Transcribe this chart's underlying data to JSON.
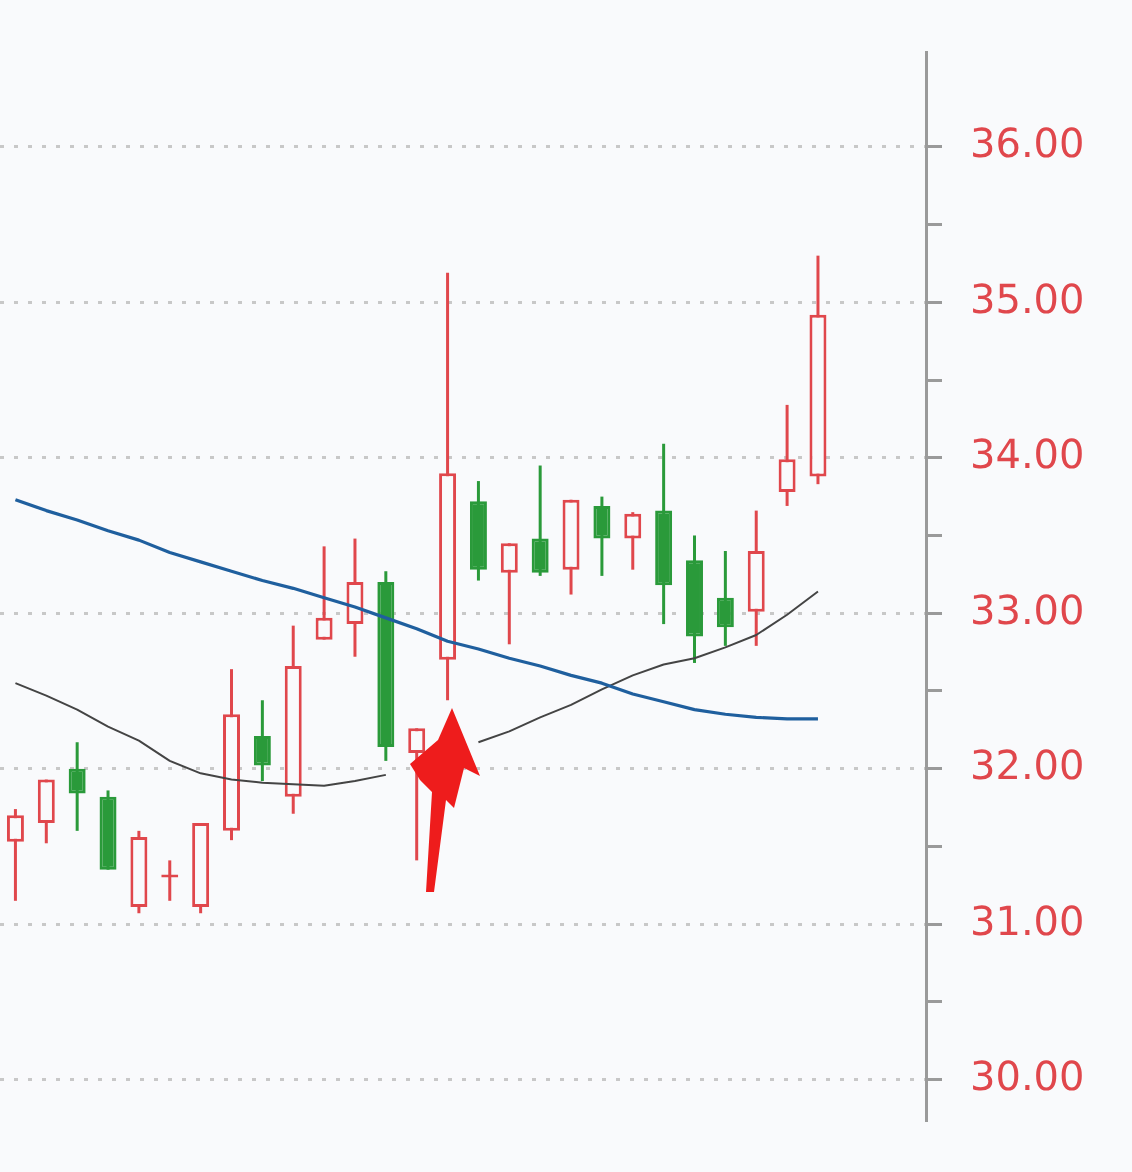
{
  "chart_data": {
    "type": "candlestick",
    "categories": [
      null,
      null,
      null,
      null,
      null,
      null,
      null,
      null,
      null,
      null,
      null,
      null,
      null,
      null,
      null,
      null,
      null,
      null,
      null,
      null,
      null,
      null,
      null,
      null,
      null,
      null,
      null,
      null,
      null,
      null
    ],
    "ohlc": [
      [
        31.53,
        31.74,
        31.15,
        31.7
      ],
      [
        31.65,
        31.93,
        31.52,
        31.93
      ],
      [
        32.0,
        32.17,
        31.6,
        31.84
      ],
      [
        31.82,
        31.86,
        31.35,
        31.35
      ],
      [
        31.11,
        31.6,
        31.07,
        31.56
      ],
      [
        31.3,
        31.41,
        31.15,
        31.31
      ],
      [
        31.11,
        31.65,
        31.07,
        31.65
      ],
      [
        31.6,
        32.64,
        31.54,
        32.35
      ],
      [
        32.21,
        32.44,
        31.92,
        32.02
      ],
      [
        31.82,
        32.92,
        31.71,
        32.66
      ],
      [
        32.83,
        33.43,
        32.83,
        32.97
      ],
      [
        32.93,
        33.48,
        32.72,
        33.2
      ],
      [
        33.2,
        33.27,
        32.05,
        32.14
      ],
      [
        32.1,
        32.26,
        31.41,
        32.26
      ],
      [
        32.7,
        35.19,
        32.44,
        33.9
      ],
      [
        33.72,
        33.85,
        33.21,
        33.28
      ],
      [
        33.26,
        33.45,
        32.8,
        33.45
      ],
      [
        33.48,
        33.95,
        33.24,
        33.26
      ],
      [
        33.28,
        33.73,
        33.12,
        33.73
      ],
      [
        33.69,
        33.75,
        33.24,
        33.48
      ],
      [
        33.48,
        33.65,
        33.28,
        33.64
      ],
      [
        33.66,
        34.09,
        32.93,
        33.18
      ],
      [
        33.34,
        33.5,
        32.68,
        32.85
      ],
      [
        33.1,
        33.4,
        32.79,
        32.91
      ],
      [
        33.01,
        33.66,
        32.79,
        33.4
      ],
      [
        33.78,
        34.34,
        33.69,
        33.99
      ],
      [
        33.88,
        35.3,
        33.83,
        34.92
      ],
      null,
      null,
      null
    ],
    "colors": [
      "#e0474c",
      "#e0474c",
      "#2a9a3a",
      "#2a9a3a",
      "#e0474c",
      "#e0474c",
      "#e0474c",
      "#e0474c",
      "#2a9a3a",
      "#e0474c",
      "#e0474c",
      "#e0474c",
      "#2a9a3a",
      "#e0474c",
      "#e0474c",
      "#2a9a3a",
      "#e0474c",
      "#2a9a3a",
      "#e0474c",
      "#2a9a3a",
      "#e0474c",
      "#2a9a3a",
      "#2a9a3a",
      "#2a9a3a",
      "#e0474c",
      "#e0474c",
      "#e0474c",
      null,
      null,
      null
    ],
    "series": [
      {
        "type": "line",
        "color": "#1f5f9e",
        "values": [
          33.73,
          33.66,
          33.6,
          33.53,
          33.47,
          33.39,
          33.33,
          33.27,
          33.21,
          33.16,
          33.1,
          33.04,
          32.97,
          32.9,
          32.82,
          32.77,
          32.71,
          32.66,
          32.6,
          32.55,
          32.48,
          32.43,
          32.38,
          32.35,
          32.33,
          32.32,
          32.32,
          null,
          null,
          null
        ]
      },
      {
        "type": "line",
        "color": "#444444",
        "values": [
          32.55,
          32.47,
          32.38,
          32.27,
          32.18,
          32.05,
          31.97,
          31.93,
          31.91,
          31.9,
          31.89,
          31.92,
          31.96,
          null,
          null,
          32.17,
          32.24,
          32.33,
          32.41,
          32.51,
          32.6,
          32.67,
          32.71,
          32.78,
          32.86,
          32.99,
          33.14,
          null,
          null,
          null
        ]
      }
    ],
    "ylim": [
      29.74,
      36.61
    ],
    "yticks": [
      {
        "value": 30,
        "label": "30.00"
      },
      {
        "value": 30.5,
        "label": null
      },
      {
        "value": 31,
        "label": "31.00"
      },
      {
        "value": 31.5,
        "label": null
      },
      {
        "value": 32,
        "label": "32.00"
      },
      {
        "value": 32.5,
        "label": null
      },
      {
        "value": 33,
        "label": "33.00"
      },
      {
        "value": 33.5,
        "label": null
      },
      {
        "value": 34,
        "label": "34.00"
      },
      {
        "value": 34.5,
        "label": null
      },
      {
        "value": 35,
        "label": "35.00"
      },
      {
        "value": 35.5,
        "label": null
      },
      {
        "value": 36,
        "label": "36.00"
      }
    ],
    "grid": "y",
    "legend": false,
    "tick_labels": "y"
  }
}
